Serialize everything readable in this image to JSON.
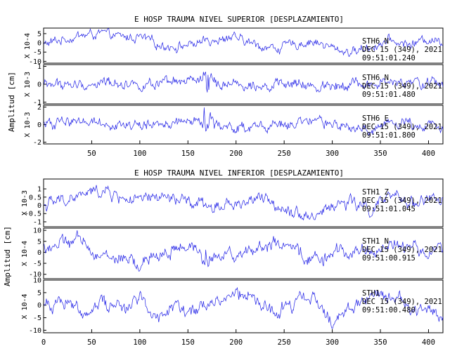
{
  "chart_data": [
    {
      "type": "line",
      "title": "E HOSP TRAUMA NIVEL SUPERIOR [DESPLAZAMIENTO]",
      "ylabel": "Amplitud [cm]",
      "xlim": [
        0,
        415
      ],
      "xticks": [
        50,
        100,
        150,
        200,
        250,
        300,
        350,
        400
      ],
      "line_color": "#1f1fe6",
      "traces": [
        {
          "scale": "X 10-4",
          "ylim": [
            -11,
            8
          ],
          "yticks": [
            5,
            0,
            -5,
            -10
          ],
          "annotation": [
            "STH6 N",
            "DEC 15 (349), 2021",
            "09:51:01.240"
          ],
          "event_amp": 0.3,
          "x": [
            0,
            20,
            40,
            60,
            80,
            100,
            120,
            140,
            160,
            180,
            200,
            220,
            240,
            260,
            280,
            300,
            320,
            340,
            360,
            380,
            400,
            415
          ],
          "y": [
            -1,
            2,
            4,
            5,
            3,
            3,
            -1,
            -2,
            0,
            1,
            2,
            -1,
            -3,
            -1,
            1,
            -3,
            -5,
            -2,
            1,
            -1,
            2,
            1
          ]
        },
        {
          "scale": "X 10-3",
          "ylim": [
            -1.1,
            1.1
          ],
          "yticks": [
            1,
            0,
            -1
          ],
          "annotation": [
            "STH6 N",
            "DEC 15 (349), 2021",
            "09:51:01.480"
          ],
          "event_amp": 1.0,
          "x": [
            0,
            20,
            40,
            60,
            80,
            100,
            120,
            140,
            160,
            180,
            200,
            220,
            240,
            260,
            280,
            300,
            320,
            340,
            360,
            380,
            400,
            415
          ],
          "y": [
            0,
            0,
            -0.1,
            0.1,
            0.1,
            0,
            -0.1,
            0.1,
            0.2,
            0.1,
            0,
            0.1,
            -0.1,
            0,
            -0.2,
            0,
            0.1,
            -0.1,
            0.1,
            0,
            0.1,
            0
          ]
        },
        {
          "scale": "X 10-3",
          "ylim": [
            -2.2,
            2.2
          ],
          "yticks": [
            2,
            0,
            -2
          ],
          "annotation": [
            "STH6 E",
            "DEC 15 (349), 2021",
            "09:51:01.800"
          ],
          "event_amp": 2.0,
          "x": [
            0,
            20,
            40,
            60,
            80,
            100,
            120,
            140,
            160,
            180,
            200,
            220,
            240,
            260,
            280,
            300,
            320,
            340,
            360,
            380,
            400,
            415
          ],
          "y": [
            0,
            0.3,
            0.6,
            0.2,
            0,
            -0.2,
            0.1,
            0.2,
            0.3,
            0,
            -0.5,
            -0.3,
            -0.1,
            0,
            0.2,
            0.1,
            -0.6,
            -0.4,
            0.1,
            0.2,
            0,
            0.1
          ]
        }
      ]
    },
    {
      "type": "line",
      "title": "E HOSP TRAUMA NIVEL INFERIOR [DESPLAZAMIENTO]",
      "ylabel": "Amplitud [cm]",
      "xlim": [
        0,
        415
      ],
      "xticks": [
        0,
        50,
        100,
        150,
        200,
        250,
        300,
        350,
        400
      ],
      "line_color": "#1f1fe6",
      "traces": [
        {
          "scale": "X 10-3",
          "ylim": [
            -1.3,
            1.6
          ],
          "yticks": [
            1,
            0.5,
            0,
            -0.5,
            -1
          ],
          "annotation": [
            "STH1 Z",
            "DEC 15 (349), 2021",
            "09:51:01.045"
          ],
          "event_amp": 0.3,
          "x": [
            0,
            20,
            40,
            60,
            80,
            100,
            120,
            140,
            160,
            180,
            200,
            220,
            240,
            260,
            280,
            300,
            320,
            340,
            360,
            380,
            400,
            415
          ],
          "y": [
            0,
            0.3,
            0.6,
            0.9,
            0.5,
            0.2,
            0.5,
            0.3,
            0,
            -0.2,
            0.1,
            0.4,
            0.1,
            -0.3,
            -0.7,
            0,
            0.2,
            -0.3,
            0.5,
            0.2,
            0.4,
            0.3
          ]
        },
        {
          "scale": "X 10-4",
          "ylim": [
            -12,
            11
          ],
          "yticks": [
            10,
            5,
            0,
            -5,
            -10
          ],
          "annotation": [
            "STH1 N",
            "DEC 15 (349), 2021",
            "09:51:00.915"
          ],
          "event_amp": 3,
          "x": [
            0,
            20,
            40,
            60,
            80,
            100,
            120,
            140,
            160,
            180,
            200,
            220,
            240,
            260,
            280,
            300,
            320,
            340,
            360,
            380,
            400,
            415
          ],
          "y": [
            2,
            4,
            5,
            -2,
            -3,
            -6,
            -1,
            2,
            0,
            -3,
            0,
            2,
            4,
            0,
            -3,
            -2,
            2,
            0,
            4,
            2,
            0,
            1
          ]
        },
        {
          "scale": "X 10-4",
          "ylim": [
            -11,
            10
          ],
          "yticks": [
            10,
            5,
            0,
            -5,
            -10
          ],
          "annotation": [
            "STH1",
            "DEC 15 (349), 2021",
            "09:51:00.480"
          ],
          "event_amp": 1,
          "x": [
            0,
            20,
            40,
            60,
            80,
            100,
            120,
            140,
            160,
            180,
            200,
            220,
            240,
            260,
            280,
            300,
            320,
            340,
            360,
            380,
            400,
            415
          ],
          "y": [
            -1,
            3,
            -3,
            2,
            -2,
            4,
            -5,
            0,
            -3,
            1,
            4,
            2,
            -4,
            1,
            2,
            -6,
            -1,
            3,
            5,
            0,
            -2,
            -4
          ]
        }
      ]
    }
  ]
}
